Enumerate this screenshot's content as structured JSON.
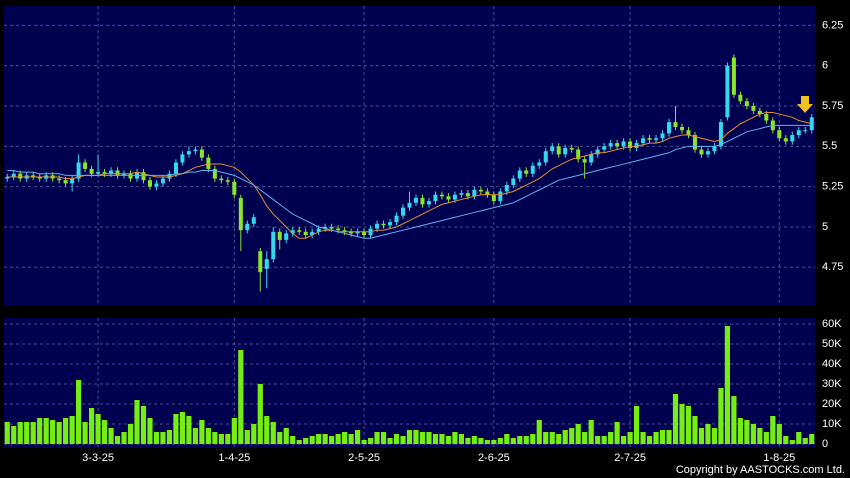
{
  "chart_data": {
    "type": "candlestick",
    "source": "Copyright by AASTOCKS.com Ltd.",
    "categories": [
      null,
      null,
      null,
      null,
      null,
      null,
      null,
      null,
      null,
      null,
      null,
      null,
      null,
      null,
      "3-3-25",
      null,
      null,
      null,
      null,
      null,
      null,
      null,
      null,
      null,
      null,
      null,
      null,
      null,
      null,
      null,
      null,
      null,
      null,
      null,
      null,
      "1-4-25",
      null,
      null,
      null,
      null,
      null,
      null,
      null,
      null,
      null,
      null,
      null,
      null,
      null,
      null,
      null,
      null,
      null,
      null,
      null,
      "2-5-25",
      null,
      null,
      null,
      null,
      null,
      null,
      null,
      null,
      null,
      null,
      null,
      null,
      null,
      null,
      null,
      null,
      null,
      null,
      null,
      "2-6-25",
      null,
      null,
      null,
      null,
      null,
      null,
      null,
      null,
      null,
      null,
      null,
      null,
      null,
      null,
      null,
      null,
      null,
      null,
      null,
      null,
      "2-7-25",
      null,
      null,
      null,
      null,
      null,
      null,
      null,
      null,
      null,
      null,
      null,
      null,
      null,
      null,
      null,
      null,
      null,
      null,
      null,
      null,
      null,
      null,
      "1-8-25",
      null,
      null,
      null,
      null,
      null
    ],
    "open": [
      5.3,
      5.31,
      5.33,
      5.3,
      5.32,
      5.31,
      5.3,
      5.32,
      5.3,
      5.29,
      5.27,
      5.3,
      5.4,
      5.36,
      5.33,
      5.34,
      5.33,
      5.35,
      5.32,
      5.33,
      5.3,
      5.34,
      5.29,
      5.25,
      5.27,
      5.3,
      5.33,
      5.4,
      5.45,
      5.47,
      5.48,
      5.43,
      5.36,
      5.3,
      5.29,
      5.28,
      5.18,
      4.98,
      5.02,
      4.85,
      4.74,
      4.8,
      4.97,
      4.92,
      4.96,
      4.98,
      4.97,
      4.95,
      4.97,
      4.99,
      5.0,
      4.99,
      4.98,
      4.97,
      4.96,
      4.97,
      4.95,
      4.99,
      5.02,
      5.01,
      5.03,
      5.07,
      5.12,
      5.15,
      5.18,
      5.14,
      5.16,
      5.2,
      5.19,
      5.17,
      5.2,
      5.21,
      5.19,
      5.23,
      5.22,
      5.2,
      5.16,
      5.22,
      5.26,
      5.3,
      5.35,
      5.33,
      5.38,
      5.4,
      5.47,
      5.5,
      5.45,
      5.49,
      5.48,
      5.42,
      5.4,
      5.45,
      5.48,
      5.5,
      5.52,
      5.5,
      5.53,
      5.49,
      5.52,
      5.55,
      5.54,
      5.55,
      5.58,
      5.65,
      5.62,
      5.6,
      5.57,
      5.48,
      5.45,
      5.47,
      5.5,
      5.68,
      6.05,
      5.82,
      5.78,
      5.75,
      5.72,
      5.7,
      5.66,
      5.6,
      5.55,
      5.53,
      5.57,
      5.6,
      5.6
    ],
    "high": [
      5.33,
      5.35,
      5.35,
      5.34,
      5.34,
      5.33,
      5.34,
      5.34,
      5.32,
      5.31,
      5.32,
      5.45,
      5.42,
      5.38,
      5.45,
      5.36,
      5.37,
      5.37,
      5.35,
      5.35,
      5.36,
      5.36,
      5.31,
      5.29,
      5.32,
      5.35,
      5.42,
      5.47,
      5.5,
      5.5,
      5.5,
      5.45,
      5.38,
      5.32,
      5.31,
      5.3,
      5.2,
      5.04,
      5.08,
      4.87,
      4.85,
      5.0,
      4.99,
      4.98,
      5.0,
      5.0,
      4.99,
      4.99,
      5.01,
      5.02,
      5.02,
      5.01,
      5.0,
      4.99,
      4.99,
      4.99,
      5.01,
      5.04,
      5.04,
      5.05,
      5.09,
      5.14,
      5.22,
      5.2,
      5.2,
      5.18,
      5.22,
      5.22,
      5.21,
      5.22,
      5.23,
      5.23,
      5.25,
      5.25,
      5.24,
      5.22,
      5.24,
      5.28,
      5.32,
      5.37,
      5.37,
      5.4,
      5.42,
      5.49,
      5.52,
      5.52,
      5.51,
      5.51,
      5.5,
      5.44,
      5.47,
      5.5,
      5.52,
      5.54,
      5.54,
      5.55,
      5.55,
      5.54,
      5.57,
      5.57,
      5.57,
      5.6,
      5.67,
      5.75,
      5.64,
      5.62,
      5.59,
      5.5,
      5.49,
      5.52,
      5.67,
      6.02,
      6.07,
      5.84,
      5.8,
      5.77,
      5.74,
      5.72,
      5.68,
      5.62,
      5.57,
      5.59,
      5.62,
      5.62,
      5.7
    ],
    "low": [
      5.28,
      5.29,
      5.28,
      5.28,
      5.29,
      5.28,
      5.28,
      5.28,
      5.27,
      5.25,
      5.22,
      5.28,
      5.34,
      5.31,
      5.31,
      5.31,
      5.31,
      5.3,
      5.3,
      5.28,
      5.28,
      5.27,
      5.23,
      5.23,
      5.25,
      5.28,
      5.31,
      5.38,
      5.43,
      5.45,
      5.41,
      5.34,
      5.28,
      5.27,
      5.26,
      5.18,
      4.85,
      4.96,
      5.0,
      4.6,
      4.62,
      4.78,
      4.86,
      4.9,
      4.94,
      4.95,
      4.93,
      4.93,
      4.95,
      4.97,
      4.97,
      4.96,
      4.95,
      4.94,
      4.94,
      4.93,
      4.93,
      4.97,
      4.99,
      4.99,
      5.01,
      5.05,
      5.1,
      5.13,
      5.12,
      5.12,
      5.14,
      5.17,
      5.15,
      5.15,
      5.18,
      5.17,
      5.17,
      5.2,
      5.18,
      5.14,
      5.14,
      5.2,
      5.24,
      5.28,
      5.31,
      5.31,
      5.36,
      5.38,
      5.45,
      5.43,
      5.43,
      5.46,
      5.4,
      5.3,
      5.38,
      5.43,
      5.46,
      5.48,
      5.48,
      5.48,
      5.47,
      5.47,
      5.5,
      5.52,
      5.52,
      5.53,
      5.56,
      5.6,
      5.58,
      5.55,
      5.46,
      5.43,
      5.43,
      5.45,
      5.48,
      5.66,
      5.8,
      5.76,
      5.73,
      5.7,
      5.68,
      5.64,
      5.58,
      5.53,
      5.51,
      5.51,
      5.55,
      5.58,
      5.58
    ],
    "close": [
      5.31,
      5.33,
      5.3,
      5.32,
      5.31,
      5.3,
      5.32,
      5.3,
      5.29,
      5.27,
      5.3,
      5.4,
      5.36,
      5.33,
      5.34,
      5.33,
      5.35,
      5.32,
      5.33,
      5.3,
      5.34,
      5.29,
      5.25,
      5.27,
      5.3,
      5.33,
      5.4,
      5.45,
      5.47,
      5.48,
      5.43,
      5.36,
      5.3,
      5.29,
      5.28,
      5.2,
      4.98,
      5.02,
      5.06,
      4.72,
      4.8,
      4.97,
      4.92,
      4.96,
      4.98,
      4.97,
      4.95,
      4.97,
      4.99,
      5.0,
      4.99,
      4.98,
      4.97,
      4.96,
      4.97,
      4.95,
      4.99,
      5.02,
      5.01,
      5.03,
      5.07,
      5.12,
      5.15,
      5.18,
      5.14,
      5.16,
      5.2,
      5.19,
      5.17,
      5.2,
      5.21,
      5.19,
      5.23,
      5.22,
      5.2,
      5.16,
      5.22,
      5.26,
      5.3,
      5.35,
      5.33,
      5.38,
      5.4,
      5.47,
      5.5,
      5.45,
      5.49,
      5.48,
      5.42,
      5.4,
      5.45,
      5.48,
      5.5,
      5.52,
      5.5,
      5.53,
      5.49,
      5.52,
      5.55,
      5.54,
      5.55,
      5.58,
      5.65,
      5.62,
      5.6,
      5.57,
      5.48,
      5.45,
      5.47,
      5.5,
      5.65,
      6.0,
      5.82,
      5.78,
      5.75,
      5.72,
      5.7,
      5.66,
      5.6,
      5.55,
      5.53,
      5.57,
      5.6,
      5.6,
      5.68
    ],
    "up_color": "#33d9ee",
    "down_color": "#8ae62a",
    "lines": [
      {
        "color": "#e8902a",
        "values": [
          5.31,
          5.31,
          5.31,
          5.31,
          5.31,
          5.31,
          5.31,
          5.31,
          5.31,
          5.3,
          5.3,
          5.31,
          5.32,
          5.32,
          5.32,
          5.33,
          5.33,
          5.33,
          5.33,
          5.33,
          5.34,
          5.33,
          5.32,
          5.31,
          5.31,
          5.31,
          5.32,
          5.33,
          5.35,
          5.37,
          5.38,
          5.39,
          5.39,
          5.39,
          5.38,
          5.37,
          5.34,
          5.3,
          5.26,
          5.2,
          5.13,
          5.08,
          5.04,
          5.0,
          4.96,
          4.93,
          4.93,
          4.95,
          4.97,
          4.98,
          4.98,
          4.97,
          4.97,
          4.97,
          4.97,
          4.97,
          4.97,
          4.98,
          4.98,
          4.99,
          5.0,
          5.02,
          5.04,
          5.06,
          5.08,
          5.1,
          5.12,
          5.14,
          5.15,
          5.16,
          5.17,
          5.18,
          5.19,
          5.2,
          5.2,
          5.2,
          5.2,
          5.21,
          5.22,
          5.24,
          5.26,
          5.28,
          5.3,
          5.33,
          5.36,
          5.38,
          5.4,
          5.42,
          5.43,
          5.44,
          5.45,
          5.46,
          5.46,
          5.47,
          5.48,
          5.49,
          5.5,
          5.5,
          5.51,
          5.52,
          5.52,
          5.53,
          5.55,
          5.56,
          5.57,
          5.57,
          5.56,
          5.55,
          5.54,
          5.53,
          5.54,
          5.58,
          5.61,
          5.64,
          5.66,
          5.68,
          5.7,
          5.71,
          5.71,
          5.7,
          5.69,
          5.68,
          5.66,
          5.65,
          5.64
        ]
      },
      {
        "color": "#5ab4f0",
        "values": [
          5.35,
          5.35,
          5.34,
          5.34,
          5.34,
          5.33,
          5.33,
          5.33,
          5.33,
          5.32,
          5.32,
          5.32,
          5.32,
          5.32,
          5.32,
          5.32,
          5.32,
          5.32,
          5.32,
          5.32,
          5.32,
          5.32,
          5.32,
          5.32,
          5.32,
          5.32,
          5.33,
          5.33,
          5.34,
          5.34,
          5.35,
          5.35,
          5.35,
          5.34,
          5.33,
          5.32,
          5.3,
          5.28,
          5.26,
          5.23,
          5.2,
          5.17,
          5.14,
          5.11,
          5.08,
          5.06,
          5.04,
          5.02,
          5.0,
          4.99,
          4.98,
          4.97,
          4.96,
          4.95,
          4.94,
          4.93,
          4.93,
          4.94,
          4.95,
          4.96,
          4.97,
          4.98,
          4.99,
          5.0,
          5.01,
          5.02,
          5.03,
          5.04,
          5.05,
          5.06,
          5.07,
          5.08,
          5.09,
          5.1,
          5.11,
          5.12,
          5.13,
          5.14,
          5.15,
          5.17,
          5.19,
          5.21,
          5.23,
          5.25,
          5.27,
          5.29,
          5.3,
          5.31,
          5.32,
          5.33,
          5.34,
          5.35,
          5.36,
          5.37,
          5.38,
          5.39,
          5.4,
          5.41,
          5.42,
          5.43,
          5.44,
          5.45,
          5.46,
          5.48,
          5.49,
          5.5,
          5.5,
          5.5,
          5.5,
          5.5,
          5.51,
          5.53,
          5.55,
          5.57,
          5.59,
          5.6,
          5.61,
          5.62,
          5.63,
          5.63,
          5.63,
          5.63,
          5.63,
          5.63,
          5.63
        ]
      }
    ],
    "ylim": [
      4.51,
      6.37
    ],
    "yticks": [
      4.75,
      5,
      5.25,
      5.5,
      5.75,
      6,
      6.25
    ],
    "grid": true,
    "volume": {
      "color": "#77ee11",
      "values": [
        11000,
        9000,
        11000,
        11000,
        11000,
        13000,
        13000,
        12000,
        11000,
        13000,
        14000,
        32000,
        11000,
        18000,
        15000,
        12000,
        8000,
        4000,
        6000,
        10000,
        22000,
        19000,
        13000,
        6000,
        6000,
        7000,
        15000,
        16000,
        14000,
        8000,
        12000,
        8000,
        6000,
        5000,
        5000,
        13000,
        47000,
        7000,
        10000,
        30000,
        14000,
        11000,
        6000,
        8000,
        4000,
        2000,
        3000,
        4000,
        5000,
        5000,
        4000,
        5000,
        6000,
        5000,
        7000,
        2000,
        3000,
        6000,
        6000,
        3000,
        5000,
        4000,
        7000,
        7000,
        6000,
        6000,
        5000,
        5000,
        4000,
        6000,
        5000,
        3000,
        4000,
        3000,
        2000,
        2000,
        3000,
        5000,
        3000,
        4000,
        4000,
        5000,
        12000,
        6000,
        6000,
        5000,
        7000,
        8000,
        10000,
        6000,
        12000,
        4000,
        4000,
        6000,
        11000,
        4000,
        6000,
        19000,
        6000,
        4000,
        6000,
        7000,
        7000,
        25000,
        20000,
        19000,
        14000,
        8000,
        10000,
        8000,
        28000,
        59000,
        24000,
        13000,
        12000,
        10000,
        8000,
        6000,
        14000,
        10000,
        4000,
        2000,
        6000,
        3000,
        5000
      ],
      "ylim": [
        -2000,
        63000
      ],
      "yticks": [
        0,
        {
          "value": 10000,
          "label": "10K"
        },
        {
          "value": 20000,
          "label": "20K"
        },
        {
          "value": 30000,
          "label": "30K"
        },
        {
          "value": 40000,
          "label": "40K"
        },
        {
          "value": 50000,
          "label": "50K"
        },
        {
          "value": 60000,
          "label": "60K"
        }
      ]
    }
  }
}
